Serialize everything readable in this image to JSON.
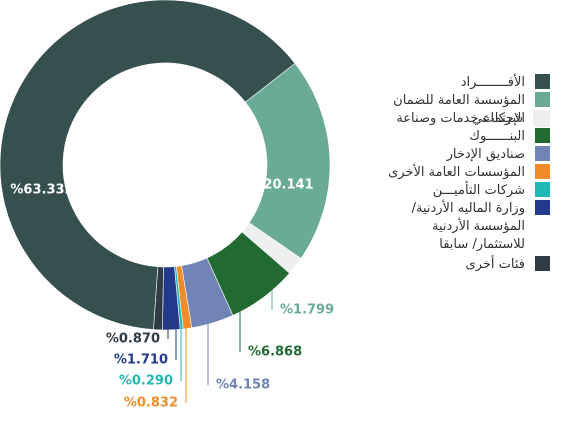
{
  "chart_data": {
    "type": "pie",
    "categories": [
      "الأفــــــــراد",
      "المؤسسة العامة للضمان الإجتماعي",
      "شركات خدمات وصناعة",
      "البنــــــوك",
      "صناديق الإدخار",
      "المؤسسات العامة الأخرى",
      "شركات التأميـــن",
      "وزارة الماليه الأردنية/ المؤسسة الأردنية للاستثمار/ سابقا",
      "فئات أخرى"
    ],
    "values": [
      63.332,
      20.141,
      1.799,
      6.868,
      4.158,
      0.832,
      0.29,
      1.71,
      0.87
    ],
    "value_labels": [
      "%63.332",
      "%20.141",
      "%1.799",
      "%6.868",
      "%4.158",
      "%0.832",
      "%0.290",
      "%1.710",
      "%0.870"
    ],
    "colors": [
      "#36504f",
      "#6aab97",
      "#eef0f0",
      "#216b33",
      "#7085b5",
      "#f28c28",
      "#20b8b5",
      "#233a8a",
      "#2f3b45"
    ]
  }
}
